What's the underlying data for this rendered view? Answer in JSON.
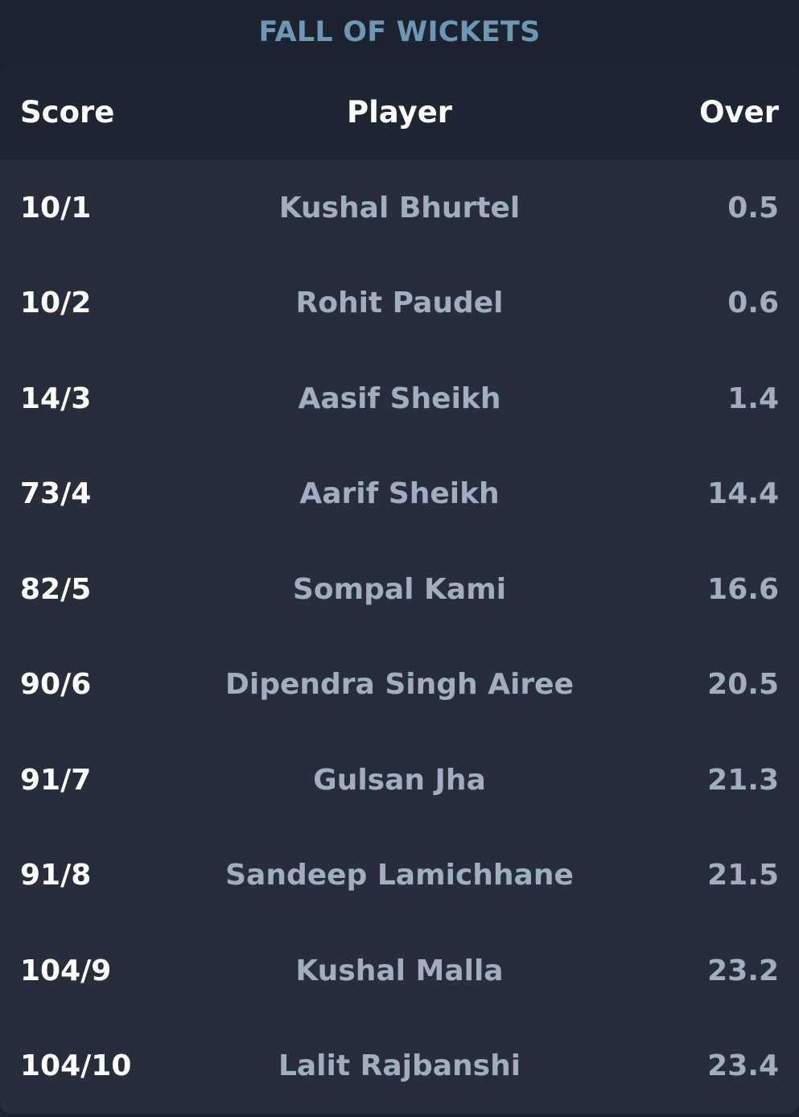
{
  "title": "FALL OF WICKETS",
  "table": {
    "headers": {
      "score": "Score",
      "player": "Player",
      "over": "Over"
    },
    "rows": [
      {
        "score": "10/1",
        "player": "Kushal Bhurtel",
        "over": "0.5"
      },
      {
        "score": "10/2",
        "player": "Rohit Paudel",
        "over": "0.6"
      },
      {
        "score": "14/3",
        "player": "Aasif Sheikh",
        "over": "1.4"
      },
      {
        "score": "73/4",
        "player": "Aarif Sheikh",
        "over": "14.4"
      },
      {
        "score": "82/5",
        "player": "Sompal Kami",
        "over": "16.6"
      },
      {
        "score": "90/6",
        "player": "Dipendra Singh Airee",
        "over": "20.5"
      },
      {
        "score": "91/7",
        "player": "Gulsan Jha",
        "over": "21.3"
      },
      {
        "score": "91/8",
        "player": "Sandeep Lamichhane",
        "over": "21.5"
      },
      {
        "score": "104/9",
        "player": "Kushal Malla",
        "over": "23.2"
      },
      {
        "score": "104/10",
        "player": "Lalit Rajbanshi",
        "over": "23.4"
      }
    ]
  },
  "colors": {
    "background": "#1b2230",
    "panel": "#262e3c",
    "header_row": "#1f2633",
    "title": "#6f97b3",
    "muted_text": "#a2adbf",
    "primary_text": "#ffffff"
  }
}
